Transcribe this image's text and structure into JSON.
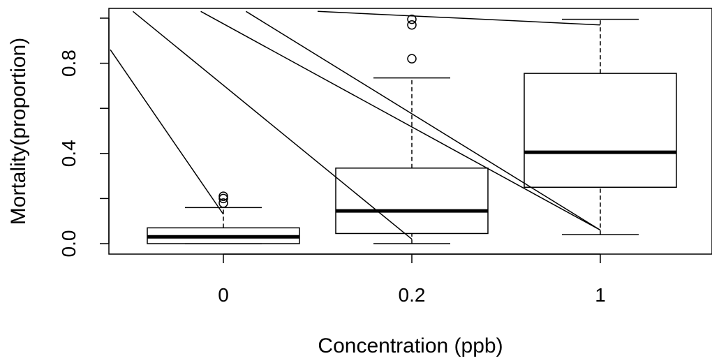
{
  "chart_data": {
    "type": "box",
    "title": "",
    "xlabel": "Concentration (ppb)",
    "ylabel": "Mortality(proportion)",
    "ylim": [
      0,
      1
    ],
    "yticks": [
      0.0,
      0.4,
      0.8
    ],
    "yticks_minor": [
      0.0,
      0.2,
      0.4,
      0.6,
      0.8,
      1.0
    ],
    "ytick_labels": [
      "0.0",
      "0.4",
      "0.8"
    ],
    "grid": false,
    "legend": "none",
    "categories": [
      "0",
      "0.2",
      "1"
    ],
    "boxes": [
      {
        "category": "0",
        "whisker_low": 0.0,
        "q1": 0.0,
        "median": 0.03,
        "q3": 0.07,
        "whisker_high": 0.16,
        "outliers": [
          0.18,
          0.2,
          0.21
        ]
      },
      {
        "category": "0.2",
        "whisker_low": 0.0,
        "q1": 0.045,
        "median": 0.145,
        "q3": 0.335,
        "whisker_high": 0.735,
        "outliers": [
          0.82,
          0.97,
          0.995
        ]
      },
      {
        "category": "1",
        "whisker_low": 0.04,
        "q1": 0.25,
        "median": 0.405,
        "q3": 0.755,
        "whisker_high": 0.995,
        "outliers": []
      }
    ],
    "overlay_lines": [
      {
        "x": [
          -0.6,
          0.0
        ],
        "y": [
          0.86,
          0.13
        ]
      },
      {
        "x": [
          -0.48,
          1.0
        ],
        "y": [
          1.03,
          0.02
        ]
      },
      {
        "x": [
          -0.12,
          2.0
        ],
        "y": [
          1.03,
          0.06
        ]
      },
      {
        "x": [
          0.12,
          2.0
        ],
        "y": [
          1.03,
          0.06
        ]
      },
      {
        "x": [
          0.5,
          2.0
        ],
        "y": [
          1.03,
          0.97
        ]
      }
    ]
  }
}
